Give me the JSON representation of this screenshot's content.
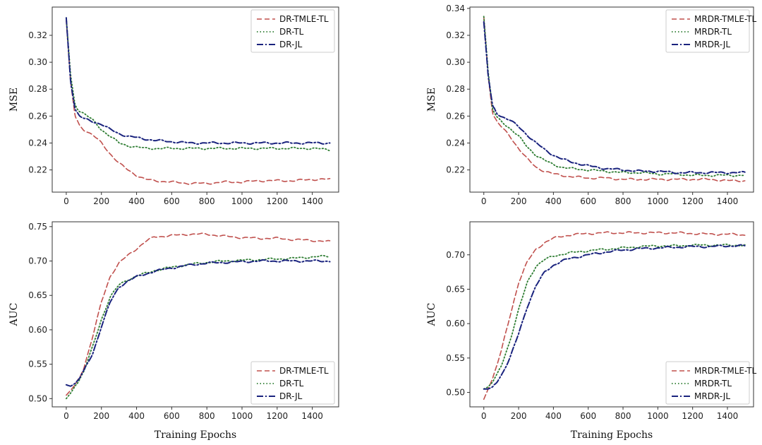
{
  "colors": {
    "tmle": "#c0504d",
    "tl": "#2e7d32",
    "jl": "#1a237e"
  },
  "chart_data": [
    {
      "id": "mse-dr",
      "type": "line",
      "title": "",
      "xlabel": "",
      "ylabel": "MSE",
      "xlim": [
        -80,
        1550
      ],
      "ylim": [
        0.2035,
        0.341
      ],
      "xticks": [
        "0",
        "200",
        "400",
        "600",
        "800",
        "1000",
        "1200",
        "1400"
      ],
      "yticks": [
        "0.22",
        "0.24",
        "0.26",
        "0.28",
        "0.30",
        "0.32"
      ],
      "legend": "top-right",
      "series": [
        {
          "name": "DR-TMLE-TL",
          "style": "tmle",
          "x": [
            0,
            25,
            50,
            75,
            100,
            150,
            200,
            250,
            300,
            350,
            400,
            450,
            500,
            600,
            700,
            800,
            900,
            1000,
            1100,
            1200,
            1300,
            1400,
            1500
          ],
          "y": [
            0.331,
            0.285,
            0.26,
            0.253,
            0.25,
            0.246,
            0.24,
            0.232,
            0.225,
            0.22,
            0.216,
            0.213,
            0.212,
            0.211,
            0.21,
            0.21,
            0.211,
            0.211,
            0.212,
            0.212,
            0.212,
            0.213,
            0.213
          ]
        },
        {
          "name": "DR-TL",
          "style": "tl",
          "x": [
            0,
            25,
            50,
            75,
            100,
            150,
            200,
            250,
            300,
            350,
            400,
            450,
            500,
            600,
            700,
            800,
            900,
            1000,
            1100,
            1200,
            1300,
            1400,
            1500
          ],
          "y": [
            0.333,
            0.29,
            0.268,
            0.264,
            0.262,
            0.257,
            0.25,
            0.245,
            0.24,
            0.238,
            0.237,
            0.236,
            0.236,
            0.236,
            0.236,
            0.236,
            0.236,
            0.236,
            0.236,
            0.236,
            0.236,
            0.236,
            0.235
          ]
        },
        {
          "name": "DR-JL",
          "style": "jl",
          "x": [
            0,
            25,
            50,
            75,
            100,
            150,
            200,
            250,
            300,
            350,
            400,
            450,
            500,
            600,
            700,
            800,
            900,
            1000,
            1100,
            1200,
            1300,
            1400,
            1500
          ],
          "y": [
            0.333,
            0.285,
            0.265,
            0.26,
            0.258,
            0.256,
            0.254,
            0.25,
            0.247,
            0.245,
            0.244,
            0.243,
            0.242,
            0.241,
            0.24,
            0.24,
            0.24,
            0.24,
            0.24,
            0.24,
            0.24,
            0.24,
            0.24
          ]
        }
      ]
    },
    {
      "id": "mse-mrdr",
      "type": "line",
      "title": "",
      "xlabel": "",
      "ylabel": "MSE",
      "xlim": [
        -80,
        1550
      ],
      "ylim": [
        0.2035,
        0.341
      ],
      "xticks": [
        "0",
        "200",
        "400",
        "600",
        "800",
        "1000",
        "1200",
        "1400"
      ],
      "yticks": [
        "0.22",
        "0.24",
        "0.26",
        "0.28",
        "0.30",
        "0.32",
        "0.34"
      ],
      "legend": "top-right",
      "series": [
        {
          "name": "MRDR-TMLE-TL",
          "style": "tmle",
          "x": [
            0,
            25,
            50,
            75,
            100,
            150,
            200,
            250,
            300,
            350,
            400,
            450,
            500,
            600,
            700,
            800,
            900,
            1000,
            1100,
            1200,
            1300,
            1400,
            1500
          ],
          "y": [
            0.334,
            0.29,
            0.262,
            0.256,
            0.252,
            0.245,
            0.236,
            0.228,
            0.222,
            0.219,
            0.217,
            0.216,
            0.215,
            0.214,
            0.214,
            0.213,
            0.213,
            0.213,
            0.213,
            0.213,
            0.213,
            0.212,
            0.212
          ]
        },
        {
          "name": "MRDR-TL",
          "style": "tl",
          "x": [
            0,
            25,
            50,
            75,
            100,
            150,
            200,
            250,
            300,
            350,
            400,
            450,
            500,
            600,
            700,
            800,
            900,
            1000,
            1100,
            1200,
            1300,
            1400,
            1500
          ],
          "y": [
            0.334,
            0.293,
            0.265,
            0.259,
            0.256,
            0.251,
            0.245,
            0.237,
            0.231,
            0.227,
            0.224,
            0.222,
            0.221,
            0.22,
            0.219,
            0.218,
            0.218,
            0.217,
            0.217,
            0.216,
            0.216,
            0.216,
            0.216
          ]
        },
        {
          "name": "MRDR-JL",
          "style": "jl",
          "x": [
            0,
            25,
            50,
            75,
            100,
            150,
            200,
            250,
            300,
            350,
            400,
            450,
            500,
            600,
            700,
            800,
            900,
            1000,
            1100,
            1200,
            1300,
            1400,
            1500
          ],
          "y": [
            0.33,
            0.29,
            0.268,
            0.262,
            0.26,
            0.257,
            0.252,
            0.246,
            0.24,
            0.235,
            0.231,
            0.228,
            0.226,
            0.223,
            0.221,
            0.22,
            0.219,
            0.219,
            0.218,
            0.218,
            0.218,
            0.218,
            0.218
          ]
        }
      ]
    },
    {
      "id": "auc-dr",
      "type": "line",
      "title": "",
      "xlabel": "Training Epochs",
      "ylabel": "AUC",
      "xlim": [
        -80,
        1550
      ],
      "ylim": [
        0.488,
        0.757
      ],
      "xticks": [
        "0",
        "200",
        "400",
        "600",
        "800",
        "1000",
        "1200",
        "1400"
      ],
      "yticks": [
        "0.50",
        "0.55",
        "0.60",
        "0.65",
        "0.70",
        "0.75"
      ],
      "legend": "bottom-right",
      "series": [
        {
          "name": "DR-TMLE-TL",
          "style": "tmle",
          "x": [
            0,
            25,
            50,
            75,
            100,
            150,
            200,
            250,
            300,
            350,
            400,
            450,
            500,
            600,
            700,
            800,
            900,
            1000,
            1100,
            1200,
            1300,
            1400,
            1500
          ],
          "y": [
            0.505,
            0.512,
            0.52,
            0.53,
            0.545,
            0.59,
            0.64,
            0.678,
            0.697,
            0.708,
            0.718,
            0.728,
            0.735,
            0.737,
            0.739,
            0.739,
            0.736,
            0.734,
            0.733,
            0.733,
            0.731,
            0.73,
            0.728
          ]
        },
        {
          "name": "DR-TL",
          "style": "tl",
          "x": [
            0,
            25,
            50,
            75,
            100,
            150,
            200,
            250,
            300,
            350,
            400,
            450,
            500,
            600,
            700,
            800,
            900,
            1000,
            1100,
            1200,
            1300,
            1400,
            1500
          ],
          "y": [
            0.5,
            0.508,
            0.518,
            0.528,
            0.54,
            0.575,
            0.615,
            0.648,
            0.665,
            0.673,
            0.678,
            0.682,
            0.686,
            0.691,
            0.695,
            0.698,
            0.7,
            0.701,
            0.702,
            0.703,
            0.704,
            0.706,
            0.707
          ]
        },
        {
          "name": "DR-JL",
          "style": "jl",
          "x": [
            0,
            25,
            50,
            75,
            100,
            150,
            200,
            250,
            300,
            350,
            400,
            450,
            500,
            600,
            700,
            800,
            900,
            1000,
            1100,
            1200,
            1300,
            1400,
            1500
          ],
          "y": [
            0.52,
            0.518,
            0.522,
            0.53,
            0.54,
            0.565,
            0.605,
            0.64,
            0.662,
            0.671,
            0.677,
            0.681,
            0.685,
            0.69,
            0.694,
            0.697,
            0.698,
            0.699,
            0.7,
            0.7,
            0.7,
            0.7,
            0.7
          ]
        }
      ]
    },
    {
      "id": "auc-mrdr",
      "type": "line",
      "title": "",
      "xlabel": "Training Epochs",
      "ylabel": "AUC",
      "xlim": [
        -80,
        1550
      ],
      "ylim": [
        0.479,
        0.748
      ],
      "xticks": [
        "0",
        "200",
        "400",
        "600",
        "800",
        "1000",
        "1200",
        "1400"
      ],
      "yticks": [
        "0.50",
        "0.55",
        "0.60",
        "0.65",
        "0.70"
      ],
      "legend": "bottom-right",
      "series": [
        {
          "name": "MRDR-TMLE-TL",
          "style": "tmle",
          "x": [
            0,
            25,
            50,
            75,
            100,
            150,
            200,
            250,
            300,
            350,
            400,
            450,
            500,
            600,
            700,
            800,
            900,
            1000,
            1100,
            1200,
            1300,
            1400,
            1500
          ],
          "y": [
            0.49,
            0.505,
            0.52,
            0.54,
            0.56,
            0.61,
            0.66,
            0.69,
            0.708,
            0.718,
            0.724,
            0.727,
            0.729,
            0.731,
            0.732,
            0.732,
            0.732,
            0.732,
            0.732,
            0.731,
            0.73,
            0.73,
            0.729
          ]
        },
        {
          "name": "MRDR-TL",
          "style": "tl",
          "x": [
            0,
            25,
            50,
            75,
            100,
            150,
            200,
            250,
            300,
            350,
            400,
            450,
            500,
            600,
            700,
            800,
            900,
            1000,
            1100,
            1200,
            1300,
            1400,
            1500
          ],
          "y": [
            0.505,
            0.508,
            0.515,
            0.525,
            0.538,
            0.575,
            0.62,
            0.66,
            0.684,
            0.693,
            0.698,
            0.701,
            0.703,
            0.706,
            0.708,
            0.71,
            0.712,
            0.713,
            0.713,
            0.714,
            0.714,
            0.714,
            0.714
          ]
        },
        {
          "name": "MRDR-JL",
          "style": "jl",
          "x": [
            0,
            25,
            50,
            75,
            100,
            150,
            200,
            250,
            300,
            350,
            400,
            450,
            500,
            600,
            700,
            800,
            900,
            1000,
            1100,
            1200,
            1300,
            1400,
            1500
          ],
          "y": [
            0.505,
            0.505,
            0.508,
            0.515,
            0.525,
            0.55,
            0.585,
            0.625,
            0.655,
            0.675,
            0.685,
            0.691,
            0.695,
            0.7,
            0.704,
            0.707,
            0.709,
            0.71,
            0.711,
            0.712,
            0.712,
            0.713,
            0.713
          ]
        }
      ]
    }
  ]
}
